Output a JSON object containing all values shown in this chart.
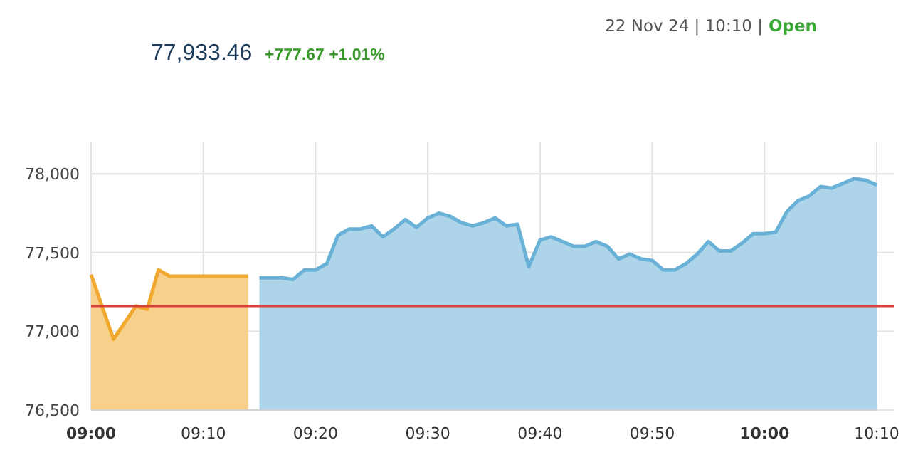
{
  "chart_data": {
    "type": "area",
    "title": "77,933.46",
    "subtitle": "+777.67 +1.01%",
    "annotations": [
      "22 Nov 24 | 10:10 |",
      "Open"
    ],
    "xlim": [
      9,
      10.1667
    ],
    "xticks": [
      {
        "value": 9,
        "label": "09:00"
      },
      {
        "value": 9.1667,
        "label": "09:10"
      },
      {
        "value": 9.3333,
        "label": "09:20"
      },
      {
        "value": 9.5,
        "label": "09:30"
      },
      {
        "value": 9.6667,
        "label": "09:40"
      },
      {
        "value": 9.8333,
        "label": "09:50"
      },
      {
        "value": 10,
        "label": "10:00"
      },
      {
        "value": 10.1667,
        "label": "10:10"
      }
    ],
    "ylim": [
      76500,
      78200
    ],
    "yticks": [
      {
        "value": 76500,
        "label": "76,500"
      },
      {
        "value": 77000,
        "label": "77,000"
      },
      {
        "value": 77500,
        "label": "77,500"
      },
      {
        "value": 78000,
        "label": "78,000"
      }
    ],
    "grid": true,
    "ref_lines": [
      {
        "axis": "y",
        "value": 77160,
        "color": "#d9423a"
      }
    ],
    "series": [
      {
        "color": "#f0a92e",
        "x": [
          9,
          9.0333,
          9.0667,
          9.0833,
          9.1,
          9.1167,
          9.2333
        ],
        "values": [
          77360,
          76950,
          77160,
          77140,
          77390,
          77350,
          77350
        ]
      },
      {
        "color": "#69b1d6",
        "x": [
          9.25,
          9.2667,
          9.2833,
          9.3,
          9.3167,
          9.3333,
          9.35,
          9.3667,
          9.3833,
          9.4,
          9.4167,
          9.4333,
          9.45,
          9.4667,
          9.4833,
          9.5,
          9.5167,
          9.5333,
          9.55,
          9.5667,
          9.5833,
          9.6,
          9.6167,
          9.6333,
          9.65,
          9.6667,
          9.6833,
          9.7,
          9.7167,
          9.7333,
          9.75,
          9.7667,
          9.7833,
          9.8,
          9.8167,
          9.8333,
          9.85,
          9.8667,
          9.8833,
          9.9,
          9.9167,
          9.9333,
          9.95,
          9.9667,
          9.9833,
          10,
          10.0167,
          10.0333,
          10.05,
          10.0667,
          10.0833,
          10.1,
          10.1167,
          10.1333,
          10.15,
          10.1667
        ],
        "values": [
          77340,
          77340,
          77340,
          77330,
          77390,
          77390,
          77430,
          77610,
          77650,
          77650,
          77670,
          77600,
          77650,
          77710,
          77660,
          77720,
          77750,
          77730,
          77690,
          77670,
          77690,
          77720,
          77670,
          77680,
          77410,
          77580,
          77600,
          77570,
          77540,
          77540,
          77570,
          77540,
          77460,
          77490,
          77460,
          77450,
          77390,
          77390,
          77430,
          77490,
          77570,
          77510,
          77510,
          77560,
          77620,
          77620,
          77630,
          77760,
          77830,
          77860,
          77920,
          77910,
          77940,
          77970,
          77960,
          77930
        ]
      }
    ]
  }
}
